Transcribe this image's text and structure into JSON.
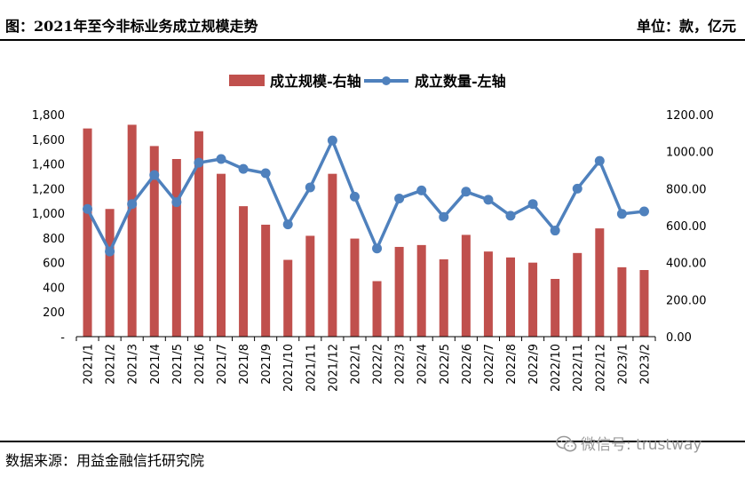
{
  "header": {
    "title": "图：2021年至今非标业务成立规模走势",
    "unit": "单位：款，亿元"
  },
  "footer": {
    "source": "数据来源：用益金融信托研究院",
    "watermark": "微信号: trustway"
  },
  "colors": {
    "bar": "#C0504D",
    "line": "#4F81BD"
  },
  "chart_data": {
    "type": "bar+line",
    "categories": [
      "2021/1",
      "2021/2",
      "2021/3",
      "2021/4",
      "2021/5",
      "2021/6",
      "2021/7",
      "2021/8",
      "2021/9",
      "2021/10",
      "2021/11",
      "2021/12",
      "2022/1",
      "2022/2",
      "2022/3",
      "2022/4",
      "2022/5",
      "2022/6",
      "2022/7",
      "2022/8",
      "2022/9",
      "2022/10",
      "2022/11",
      "2022/12",
      "2023/1",
      "2023/2"
    ],
    "left_axis": {
      "ylim": [
        0,
        1800
      ],
      "ticks": [
        "-",
        "200",
        "400",
        "600",
        "800",
        "1,000",
        "1,200",
        "1,400",
        "1,600",
        "1,800"
      ],
      "tick_values": [
        0,
        200,
        400,
        600,
        800,
        1000,
        1200,
        1400,
        1600,
        1800
      ]
    },
    "right_axis": {
      "ylim": [
        0,
        1200
      ],
      "ticks": [
        "0.00",
        "200.00",
        "400.00",
        "600.00",
        "800.00",
        "1000.00",
        "1200.00"
      ],
      "tick_values": [
        0,
        200,
        400,
        600,
        800,
        1000,
        1200
      ]
    },
    "series": [
      {
        "name": "成立规模-右轴",
        "type": "bar",
        "axis": "right",
        "values": [
          1125,
          690,
          1145,
          1030,
          960,
          1110,
          880,
          705,
          605,
          415,
          545,
          880,
          530,
          300,
          485,
          495,
          418,
          550,
          460,
          428,
          400,
          312,
          452,
          585,
          375,
          360
        ]
      },
      {
        "name": "成立数量-左轴",
        "type": "line",
        "axis": "left",
        "values": [
          1035,
          690,
          1075,
          1310,
          1090,
          1410,
          1440,
          1360,
          1325,
          910,
          1210,
          1590,
          1135,
          715,
          1120,
          1185,
          970,
          1175,
          1110,
          980,
          1075,
          860,
          1200,
          1425,
          995,
          1015
        ]
      }
    ],
    "legend": "top",
    "grid": false
  }
}
